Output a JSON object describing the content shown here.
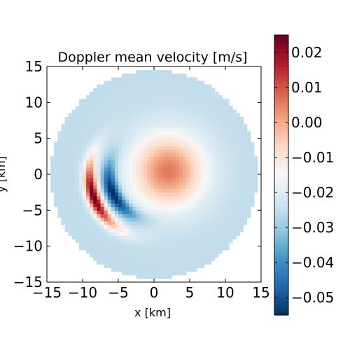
{
  "chart_data": {
    "type": "heatmap",
    "title": "Doppler mean velocity [m/s]",
    "xlabel": "x [km]",
    "ylabel": "y [km]",
    "xlim": [
      -15,
      15
    ],
    "ylim": [
      -15,
      15
    ],
    "x_ticks": [
      -15,
      -10,
      -5,
      0,
      5,
      10,
      15
    ],
    "y_ticks": [
      -15,
      -10,
      -5,
      0,
      5,
      10,
      15
    ],
    "x_tick_labels": [
      "−15",
      "−10",
      "−5",
      "0",
      "5",
      "10",
      "15"
    ],
    "y_tick_labels": [
      "−15",
      "−10",
      "−5",
      "0",
      "5",
      "10",
      "15"
    ],
    "grid": false,
    "domain_radius_km": 14.5,
    "colormap": "RdBu_r",
    "colorbar": {
      "vmin": -0.055,
      "vmax": 0.025,
      "ticks": [
        0.02,
        0.01,
        0.0,
        -0.01,
        -0.02,
        -0.03,
        -0.04,
        -0.05
      ],
      "tick_labels": [
        "0.02",
        "0.01",
        "0.00",
        "−0.01",
        "−0.02",
        "−0.03",
        "−0.04",
        "−0.05"
      ]
    },
    "background_value": -0.025,
    "features": [
      {
        "kind": "gaussian",
        "x": 2.0,
        "y": 0.5,
        "sx": 5.0,
        "sy": 5.0,
        "value": 0.031
      },
      {
        "kind": "arc",
        "cx": 0.0,
        "cy": 0.0,
        "radius": 9.0,
        "width": 0.9,
        "angle_center_deg": 200,
        "angle_span_deg": 34,
        "value": 0.05
      },
      {
        "kind": "arc",
        "cx": 0.0,
        "cy": 0.0,
        "radius": 6.3,
        "width": 1.0,
        "angle_center_deg": 205,
        "angle_span_deg": 40,
        "value": -0.033
      }
    ]
  },
  "colors": {
    "colormap_stops": [
      "#053061",
      "#2166ac",
      "#4393c3",
      "#92c5de",
      "#d1e5f0",
      "#f7f7f7",
      "#fddbc7",
      "#f4a582",
      "#d6604d",
      "#b2182b",
      "#67001f"
    ]
  }
}
